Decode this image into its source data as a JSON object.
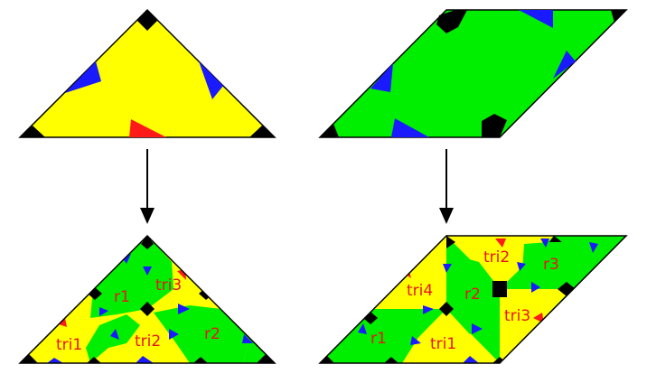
{
  "colors": {
    "yellow": "#ffff00",
    "green": "#00ee00",
    "blue": "#1a1aff",
    "red": "#ff1a1a",
    "black": "#000000",
    "label": "#e8141c"
  },
  "labels": {
    "tri1_left": "tri1",
    "tri2_left": "tri2",
    "tri3_left": "tri3",
    "r1_left": "r1",
    "r2_left": "r2",
    "tri1_right": "tri1",
    "tri2_right": "tri2",
    "tri3_right": "tri3",
    "tri4_right": "tri4",
    "r1_right": "r1",
    "r2_right": "r2",
    "r3_right": "r3"
  },
  "arrows": {
    "left": "down-arrow",
    "right": "down-arrow"
  }
}
